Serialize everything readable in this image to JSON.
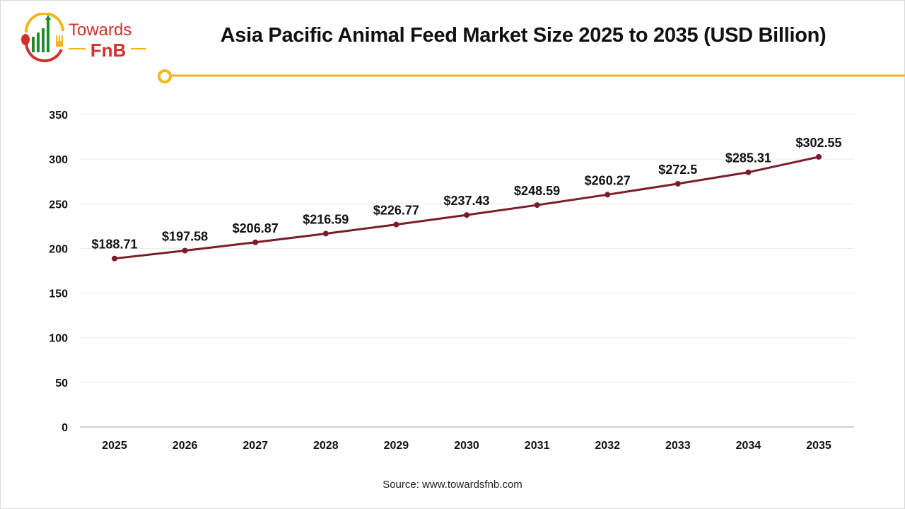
{
  "logo": {
    "line1": "Towards",
    "line2": "FnB"
  },
  "colors": {
    "line": "#7b1c2a",
    "accent": "#f2b51c",
    "logo_red": "#d0312d",
    "logo_green": "#1e8a2e"
  },
  "chart_data": {
    "type": "line",
    "title": "Asia Pacific Animal Feed Market Size 2025 to 2035 (USD Billion)",
    "xlabel": "",
    "ylabel": "",
    "categories": [
      "2025",
      "2026",
      "2027",
      "2028",
      "2029",
      "2030",
      "2031",
      "2032",
      "2033",
      "2034",
      "2035"
    ],
    "values": [
      188.71,
      197.58,
      206.87,
      216.59,
      226.77,
      237.43,
      248.59,
      260.27,
      272.5,
      285.31,
      302.55
    ],
    "data_labels": [
      "$188.71",
      "$197.58",
      "$206.87",
      "$216.59",
      "$226.77",
      "$237.43",
      "$248.59",
      "$260.27",
      "$272.5",
      "$285.31",
      "$302.55"
    ],
    "ylim": [
      0,
      350
    ],
    "yticks": [
      0,
      50,
      100,
      150,
      200,
      250,
      300,
      350
    ],
    "grid": true,
    "legend": "none"
  },
  "source": "Source: www.towardsfnb.com"
}
